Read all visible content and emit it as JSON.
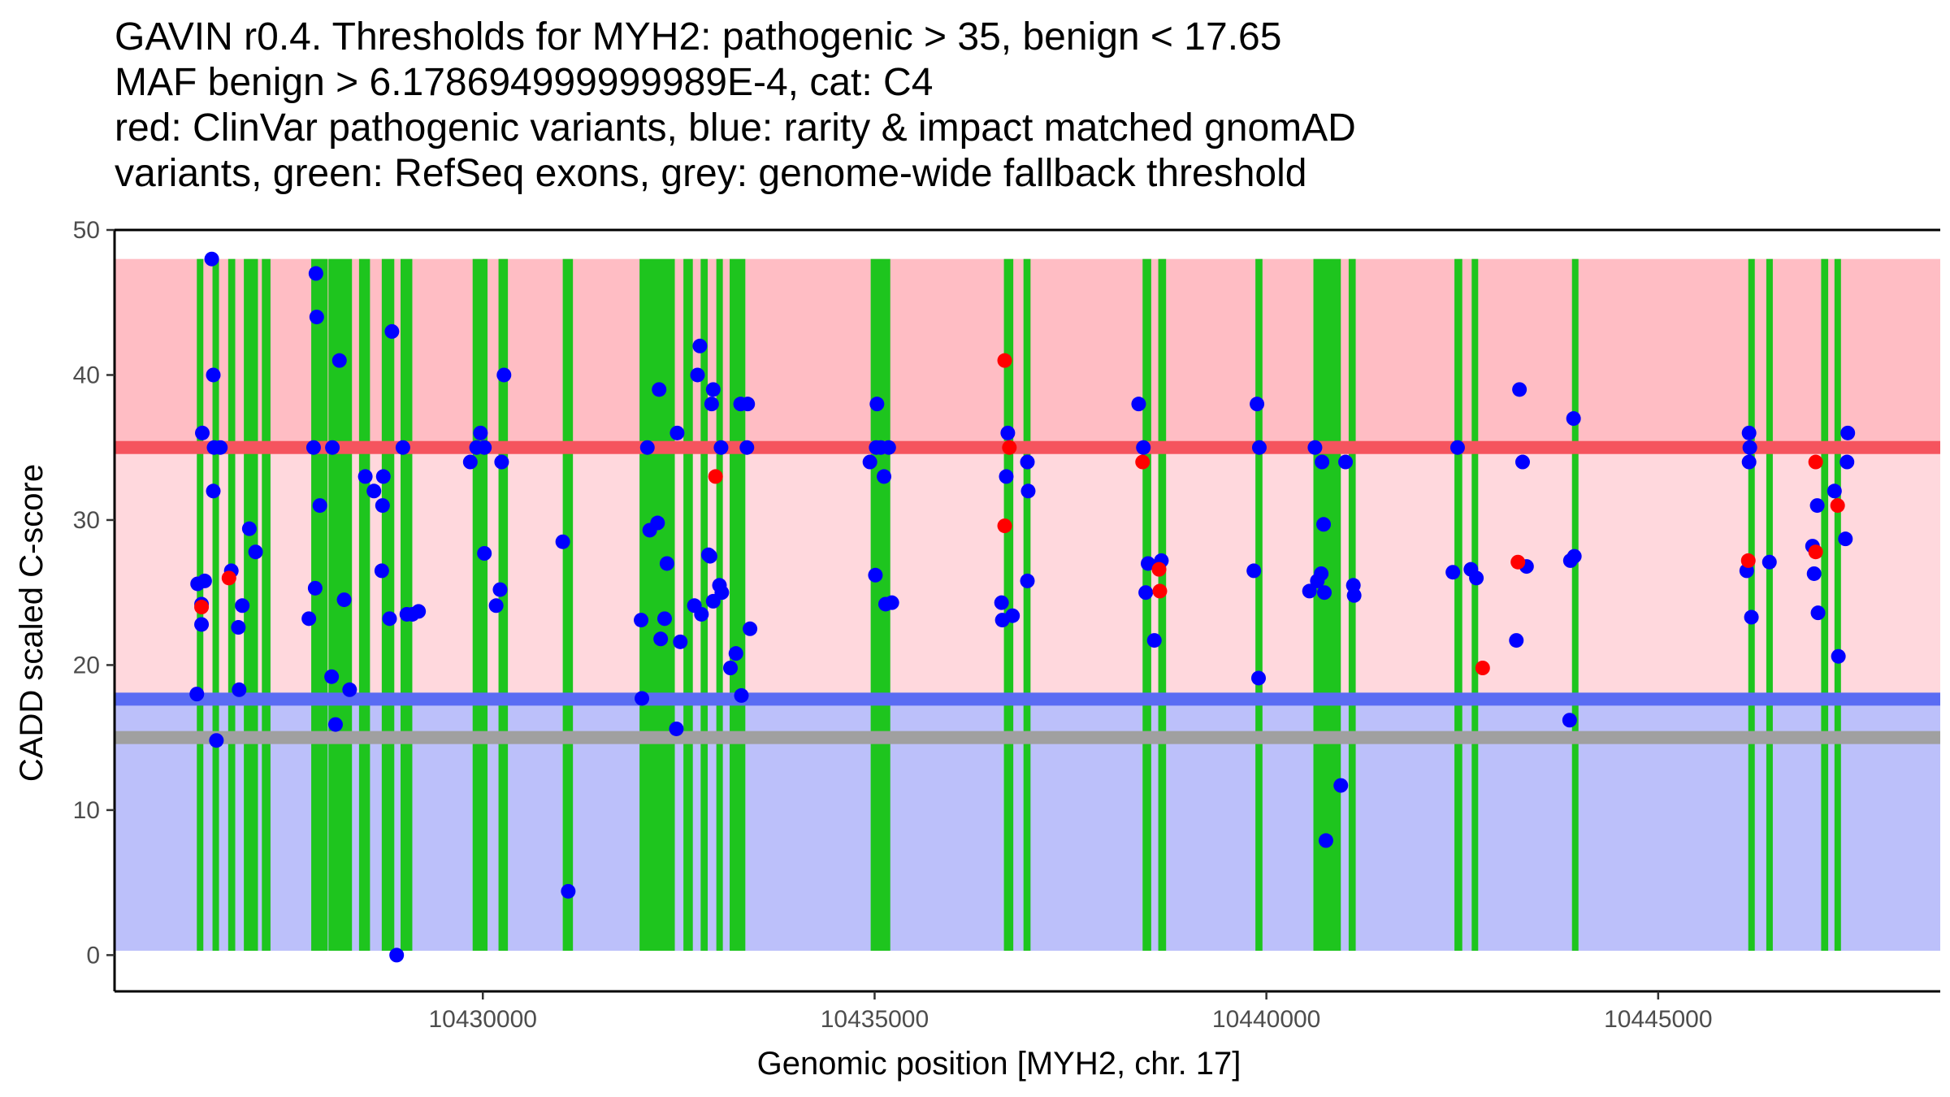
{
  "title_lines": [
    "GAVIN r0.4. Thresholds for MYH2: pathogenic > 35, benign < 17.65",
    "MAF benign > 6.178694999999989E-4, cat: C4",
    "red: ClinVar pathogenic variants, blue: rarity & impact matched gnomAD",
    "variants, green: RefSeq exons, grey: genome-wide fallback threshold"
  ],
  "colors": {
    "pathogenic_zone_high": "#ffbdc4",
    "pathogenic_zone": "#ffd8dd",
    "benign_zone": "#bcc0fa",
    "pathogenic_line": "#f5545e",
    "benign_line": "#5a6cf3",
    "fallback_line": "#a0a0a0",
    "exon": "#1ec51e",
    "clinvar": "#ff0000",
    "gnomad": "#0000ff"
  },
  "chart_data": {
    "type": "scatter",
    "xlabel": "Genomic position [MYH2, chr. 17]",
    "ylabel": "CADD scaled C-score",
    "xlim": [
      10425300,
      10448600
    ],
    "ylim": [
      -2.5,
      50
    ],
    "x_ticks": [
      10430000,
      10435000,
      10440000,
      10445000
    ],
    "x_tick_labels": [
      "10430000",
      "10435000",
      "10440000",
      "10445000"
    ],
    "y_ticks": [
      0,
      10,
      20,
      30,
      40,
      50
    ],
    "y_tick_labels": [
      "0",
      "10",
      "20",
      "30",
      "40",
      "50"
    ],
    "thresholds": {
      "pathogenic": 35,
      "benign": 17.65,
      "fallback": 15,
      "zone_top": 48,
      "zone_bottom": 0.3
    },
    "exons": [
      [
        10426350,
        10426430
      ],
      [
        10426550,
        10426620
      ],
      [
        10426750,
        10426840
      ],
      [
        10426950,
        10427130
      ],
      [
        10427180,
        10427290
      ],
      [
        10427810,
        10428020
      ],
      [
        10428030,
        10428330
      ],
      [
        10428420,
        10428560
      ],
      [
        10428710,
        10428870
      ],
      [
        10428950,
        10429100
      ],
      [
        10429870,
        10430060
      ],
      [
        10430200,
        10430320
      ],
      [
        10431020,
        10431150
      ],
      [
        10432000,
        10432450
      ],
      [
        10432560,
        10432680
      ],
      [
        10432780,
        10432870
      ],
      [
        10432980,
        10433060
      ],
      [
        10433150,
        10433350
      ],
      [
        10434950,
        10435200
      ],
      [
        10436650,
        10436770
      ],
      [
        10436900,
        10436990
      ],
      [
        10438420,
        10438530
      ],
      [
        10438620,
        10438720
      ],
      [
        10439860,
        10439950
      ],
      [
        10440600,
        10440950
      ],
      [
        10441050,
        10441140
      ],
      [
        10442400,
        10442500
      ],
      [
        10442620,
        10442700
      ],
      [
        10443900,
        10443980
      ],
      [
        10446150,
        10446230
      ],
      [
        10446380,
        10446450
      ],
      [
        10447080,
        10447170
      ],
      [
        10447250,
        10447320
      ]
    ],
    "series": [
      {
        "name": "ClinVar pathogenic variants",
        "points": [
          [
            10426410,
            24
          ],
          [
            10426760,
            26
          ],
          [
            10432970,
            33
          ],
          [
            10436660,
            41
          ],
          [
            10436660,
            29.6
          ],
          [
            10436720,
            35
          ],
          [
            10438420,
            34
          ],
          [
            10438630,
            26.6
          ],
          [
            10438640,
            25.1
          ],
          [
            10442760,
            19.8
          ],
          [
            10443210,
            27.1
          ],
          [
            10446150,
            27.2
          ],
          [
            10447010,
            34
          ],
          [
            10447010,
            27.8
          ],
          [
            10447290,
            31
          ]
        ]
      },
      {
        "name": "rarity & impact matched gnomAD variants",
        "points": [
          [
            10426360,
            25.6
          ],
          [
            10426350,
            18
          ],
          [
            10426420,
            36
          ],
          [
            10426410,
            22.8
          ],
          [
            10426410,
            24.2
          ],
          [
            10426450,
            25.8
          ],
          [
            10426540,
            48
          ],
          [
            10426560,
            40
          ],
          [
            10426560,
            32
          ],
          [
            10426570,
            35
          ],
          [
            10426600,
            14.8
          ],
          [
            10426650,
            35
          ],
          [
            10426790,
            26.5
          ],
          [
            10426880,
            22.6
          ],
          [
            10426890,
            18.3
          ],
          [
            10426930,
            24.1
          ],
          [
            10427020,
            29.4
          ],
          [
            10427100,
            27.8
          ],
          [
            10427780,
            23.2
          ],
          [
            10427840,
            35
          ],
          [
            10427860,
            25.3
          ],
          [
            10427870,
            47
          ],
          [
            10427880,
            44
          ],
          [
            10427920,
            31
          ],
          [
            10428070,
            19.2
          ],
          [
            10428080,
            35
          ],
          [
            10428120,
            15.9
          ],
          [
            10428170,
            41
          ],
          [
            10428230,
            24.5
          ],
          [
            10428300,
            18.3
          ],
          [
            10428500,
            33
          ],
          [
            10428610,
            32
          ],
          [
            10428710,
            26.5
          ],
          [
            10428720,
            31
          ],
          [
            10428730,
            33
          ],
          [
            10428810,
            23.2
          ],
          [
            10428840,
            43
          ],
          [
            10428900,
            0
          ],
          [
            10428980,
            35
          ],
          [
            10429030,
            23.5
          ],
          [
            10429100,
            23.5
          ],
          [
            10429180,
            23.7
          ],
          [
            10429840,
            34
          ],
          [
            10429920,
            35
          ],
          [
            10429970,
            36
          ],
          [
            10430020,
            35
          ],
          [
            10430020,
            27.7
          ],
          [
            10430170,
            24.1
          ],
          [
            10430220,
            25.2
          ],
          [
            10430240,
            34
          ],
          [
            10430270,
            40
          ],
          [
            10431020,
            28.5
          ],
          [
            10431090,
            4.4
          ],
          [
            10432020,
            23.1
          ],
          [
            10432030,
            17.7
          ],
          [
            10432100,
            35
          ],
          [
            10432130,
            29.3
          ],
          [
            10432230,
            29.8
          ],
          [
            10432250,
            39
          ],
          [
            10432270,
            21.8
          ],
          [
            10432320,
            23.2
          ],
          [
            10432350,
            27
          ],
          [
            10432480,
            36
          ],
          [
            10432470,
            15.6
          ],
          [
            10432520,
            21.6
          ],
          [
            10432700,
            24.1
          ],
          [
            10432740,
            40
          ],
          [
            10432770,
            42
          ],
          [
            10432790,
            23.5
          ],
          [
            10432880,
            27.6
          ],
          [
            10432900,
            27.5
          ],
          [
            10432920,
            38
          ],
          [
            10432940,
            39
          ],
          [
            10432940,
            24.4
          ],
          [
            10433020,
            25.5
          ],
          [
            10433040,
            35
          ],
          [
            10433050,
            25
          ],
          [
            10433160,
            19.8
          ],
          [
            10433230,
            20.8
          ],
          [
            10433290,
            38
          ],
          [
            10433300,
            17.9
          ],
          [
            10433380,
            38
          ],
          [
            10433370,
            35
          ],
          [
            10433410,
            22.5
          ],
          [
            10434940,
            34
          ],
          [
            10435010,
            26.2
          ],
          [
            10435020,
            35
          ],
          [
            10435030,
            38
          ],
          [
            10435080,
            35
          ],
          [
            10435120,
            33
          ],
          [
            10435140,
            24.2
          ],
          [
            10435180,
            35
          ],
          [
            10435220,
            24.3
          ],
          [
            10436620,
            24.3
          ],
          [
            10436630,
            23.1
          ],
          [
            10436680,
            33
          ],
          [
            10436700,
            36
          ],
          [
            10436760,
            23.4
          ],
          [
            10436950,
            34
          ],
          [
            10436950,
            25.8
          ],
          [
            10436960,
            32
          ],
          [
            10438370,
            38
          ],
          [
            10438430,
            35
          ],
          [
            10438460,
            25
          ],
          [
            10438490,
            27
          ],
          [
            10438570,
            21.7
          ],
          [
            10438660,
            27.2
          ],
          [
            10439840,
            26.5
          ],
          [
            10439880,
            38
          ],
          [
            10439900,
            19.1
          ],
          [
            10439910,
            35
          ],
          [
            10440550,
            25.1
          ],
          [
            10440620,
            35
          ],
          [
            10440650,
            25.8
          ],
          [
            10440700,
            26.3
          ],
          [
            10440710,
            34
          ],
          [
            10440740,
            25
          ],
          [
            10440730,
            29.7
          ],
          [
            10440760,
            7.9
          ],
          [
            10440950,
            11.7
          ],
          [
            10441010,
            34
          ],
          [
            10441110,
            25.5
          ],
          [
            10441120,
            24.8
          ],
          [
            10442380,
            26.4
          ],
          [
            10442440,
            35
          ],
          [
            10442610,
            26.6
          ],
          [
            10442680,
            26
          ],
          [
            10443190,
            21.7
          ],
          [
            10443230,
            39
          ],
          [
            10443270,
            34
          ],
          [
            10443320,
            26.8
          ],
          [
            10443880,
            27.2
          ],
          [
            10443920,
            37
          ],
          [
            10443930,
            27.5
          ],
          [
            10443870,
            16.2
          ],
          [
            10446130,
            26.5
          ],
          [
            10446160,
            36
          ],
          [
            10446160,
            34
          ],
          [
            10446170,
            35
          ],
          [
            10446190,
            23.3
          ],
          [
            10446420,
            27.1
          ],
          [
            10446970,
            28.2
          ],
          [
            10446990,
            26.3
          ],
          [
            10447030,
            31
          ],
          [
            10447040,
            23.6
          ],
          [
            10447250,
            32
          ],
          [
            10447300,
            20.6
          ],
          [
            10447390,
            28.7
          ],
          [
            10447420,
            36
          ],
          [
            10447410,
            34
          ]
        ]
      }
    ]
  }
}
